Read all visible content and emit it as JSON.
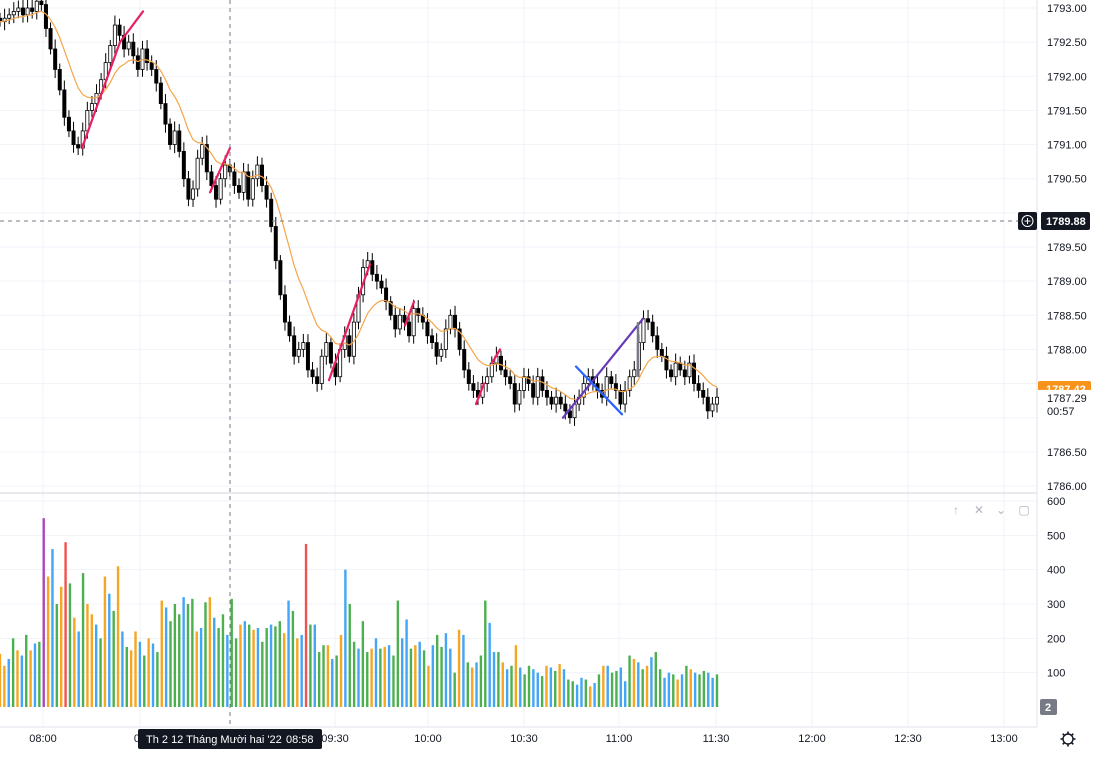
{
  "chart_data": {
    "type": "candlestick",
    "price_axis": {
      "ticks": [
        "1793.00",
        "1792.50",
        "1792.00",
        "1791.50",
        "1791.00",
        "1790.50",
        "1789.50",
        "1789.00",
        "1788.50",
        "1788.00",
        "1786.50",
        "1786.00"
      ],
      "ylim": [
        1785.95,
        1793.05
      ]
    },
    "volume_axis": {
      "ticks": [
        "600",
        "500",
        "400",
        "300",
        "200",
        "100"
      ],
      "ylim": [
        0,
        600
      ]
    },
    "time_axis": {
      "ticks": [
        "08:00",
        "09:30",
        "10:00",
        "10:30",
        "11:00",
        "11:30",
        "12:00",
        "12:30",
        "13:00"
      ]
    },
    "crosshair": {
      "price_label": "1789.88",
      "time_label": "Th 2 12 Tháng Mười hai '22",
      "time_value": "08:58"
    },
    "last_price": {
      "label": "1787.42",
      "color": "#f7931a"
    },
    "current": {
      "price": "1787.29",
      "countdown": "00:57"
    },
    "pane_badge": "2",
    "colors": {
      "candle": "#000000",
      "ma": "#f5a54a",
      "pink_lines": "#e91e63",
      "purple_lines": "#673ab7",
      "blue_lines": "#2962ff",
      "vol_green": "#4caf50",
      "vol_orange": "#f5a623",
      "vol_blue": "#42a5f5",
      "vol_red": "#ef5350",
      "vol_magenta": "#ab47bc"
    }
  }
}
